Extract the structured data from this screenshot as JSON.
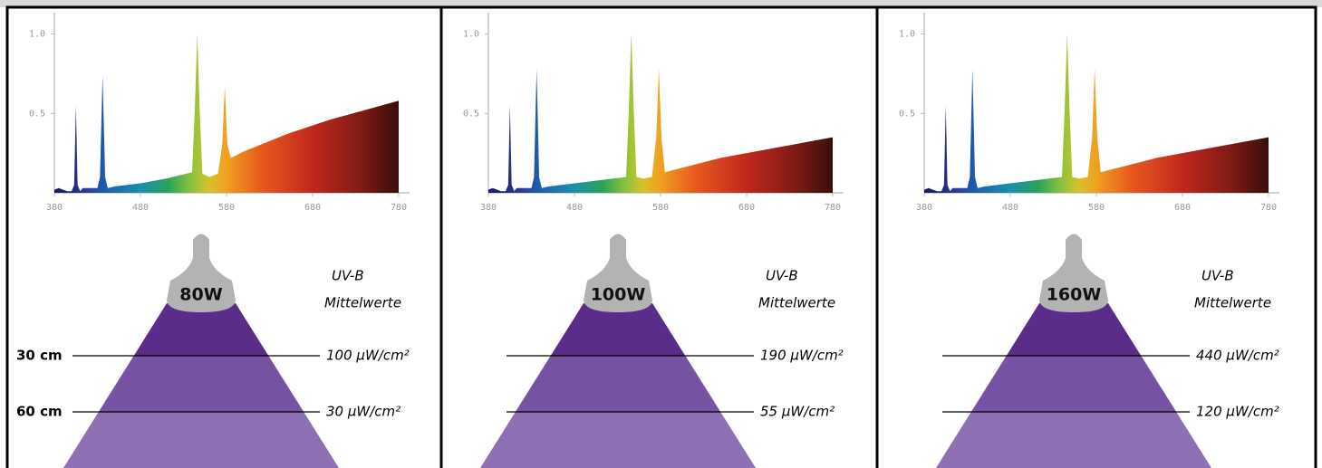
{
  "chart_data": [
    {
      "type": "area",
      "x": [
        380,
        385,
        390,
        395,
        400,
        403,
        405,
        407,
        410,
        413,
        415,
        420,
        425,
        430,
        433,
        436,
        439,
        442,
        450,
        480,
        510,
        540,
        543,
        546,
        549,
        552,
        560,
        570,
        575,
        578,
        581,
        585,
        600,
        650,
        700,
        780
      ],
      "values": [
        0.02,
        0.03,
        0.02,
        0.01,
        0.01,
        0.05,
        0.55,
        0.05,
        0.01,
        0.03,
        0.03,
        0.03,
        0.03,
        0.03,
        0.1,
        0.74,
        0.1,
        0.03,
        0.04,
        0.06,
        0.09,
        0.13,
        0.5,
        1.0,
        0.5,
        0.12,
        0.1,
        0.12,
        0.3,
        0.67,
        0.3,
        0.22,
        0.26,
        0.37,
        0.46,
        0.58
      ],
      "xlim": [
        380,
        780
      ],
      "ylim": [
        0,
        1.1
      ],
      "xticks": [
        380,
        480,
        580,
        680,
        780
      ],
      "yticks": [
        0.5,
        {
          "value": 1,
          "label": "1.0"
        }
      ]
    },
    {
      "type": "area",
      "x": [
        380,
        385,
        390,
        395,
        400,
        403,
        405,
        407,
        410,
        413,
        415,
        420,
        425,
        430,
        433,
        436,
        439,
        442,
        450,
        480,
        510,
        540,
        543,
        546,
        549,
        552,
        560,
        570,
        575,
        578,
        581,
        585,
        600,
        650,
        700,
        780
      ],
      "values": [
        0.02,
        0.03,
        0.02,
        0.01,
        0.01,
        0.05,
        0.55,
        0.05,
        0.01,
        0.03,
        0.03,
        0.03,
        0.03,
        0.03,
        0.1,
        0.78,
        0.1,
        0.03,
        0.04,
        0.06,
        0.08,
        0.1,
        0.5,
        1.0,
        0.5,
        0.1,
        0.09,
        0.1,
        0.35,
        0.78,
        0.35,
        0.13,
        0.15,
        0.22,
        0.27,
        0.35
      ],
      "xlim": [
        380,
        780
      ],
      "ylim": [
        0,
        1.1
      ],
      "xticks": [
        380,
        480,
        580,
        680,
        780
      ],
      "yticks": [
        0.5,
        {
          "value": 1,
          "label": "1.0"
        }
      ]
    },
    {
      "type": "area",
      "x": [
        380,
        385,
        390,
        395,
        400,
        403,
        405,
        407,
        410,
        413,
        415,
        420,
        425,
        430,
        433,
        436,
        439,
        442,
        450,
        480,
        510,
        540,
        543,
        546,
        549,
        552,
        560,
        570,
        575,
        578,
        581,
        585,
        600,
        650,
        700,
        780
      ],
      "values": [
        0.02,
        0.03,
        0.02,
        0.01,
        0.01,
        0.05,
        0.55,
        0.05,
        0.01,
        0.03,
        0.03,
        0.03,
        0.03,
        0.03,
        0.1,
        0.78,
        0.1,
        0.03,
        0.04,
        0.06,
        0.08,
        0.1,
        0.5,
        1.0,
        0.5,
        0.1,
        0.09,
        0.1,
        0.35,
        0.78,
        0.35,
        0.13,
        0.15,
        0.22,
        0.27,
        0.35
      ],
      "xlim": [
        380,
        780
      ],
      "ylim": [
        0,
        1.1
      ],
      "xticks": [
        380,
        480,
        580,
        680,
        780
      ],
      "yticks": [
        0.5,
        {
          "value": 1,
          "label": "1.0"
        }
      ]
    }
  ],
  "lamps": [
    {
      "wattage": "80W",
      "uvb": "UV-B",
      "mittelwerte": "Mittelwerte",
      "distances": [
        "30 cm",
        "60 cm"
      ],
      "readings": [
        "100 µW/cm²",
        "30 µW/cm²"
      ]
    },
    {
      "wattage": "100W",
      "uvb": "UV-B",
      "mittelwerte": "Mittelwerte",
      "readings": [
        "190 µW/cm²",
        "55 µW/cm²"
      ]
    },
    {
      "wattage": "160W",
      "uvb": "UV-B",
      "mittelwerte": "Mittelwerte",
      "readings": [
        "440 µW/cm²",
        "120 µW/cm²"
      ]
    }
  ]
}
